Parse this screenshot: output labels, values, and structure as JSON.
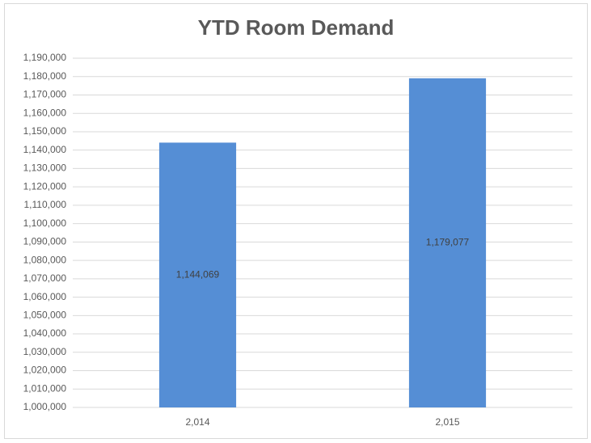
{
  "chart_data": {
    "type": "bar",
    "title": "YTD Room Demand",
    "categories": [
      "2,014",
      "2,015"
    ],
    "values": [
      1144069,
      1179077
    ],
    "value_labels": [
      "1,144,069",
      "1,179,077"
    ],
    "color": "#558ed5",
    "ylim": [
      1000000,
      1190000
    ],
    "yticks": [
      {
        "value": 1000000,
        "label": "1,000,000"
      },
      {
        "value": 1010000,
        "label": "1,010,000"
      },
      {
        "value": 1020000,
        "label": "1,020,000"
      },
      {
        "value": 1030000,
        "label": "1,030,000"
      },
      {
        "value": 1040000,
        "label": "1,040,000"
      },
      {
        "value": 1050000,
        "label": "1,050,000"
      },
      {
        "value": 1060000,
        "label": "1,060,000"
      },
      {
        "value": 1070000,
        "label": "1,070,000"
      },
      {
        "value": 1080000,
        "label": "1,080,000"
      },
      {
        "value": 1090000,
        "label": "1,090,000"
      },
      {
        "value": 1100000,
        "label": "1,100,000"
      },
      {
        "value": 1110000,
        "label": "1,110,000"
      },
      {
        "value": 1120000,
        "label": "1,120,000"
      },
      {
        "value": 1130000,
        "label": "1,130,000"
      },
      {
        "value": 1140000,
        "label": "1,140,000"
      },
      {
        "value": 1150000,
        "label": "1,150,000"
      },
      {
        "value": 1160000,
        "label": "1,160,000"
      },
      {
        "value": 1170000,
        "label": "1,170,000"
      },
      {
        "value": 1180000,
        "label": "1,180,000"
      },
      {
        "value": 1190000,
        "label": "1,190,000"
      }
    ],
    "grid": true
  }
}
